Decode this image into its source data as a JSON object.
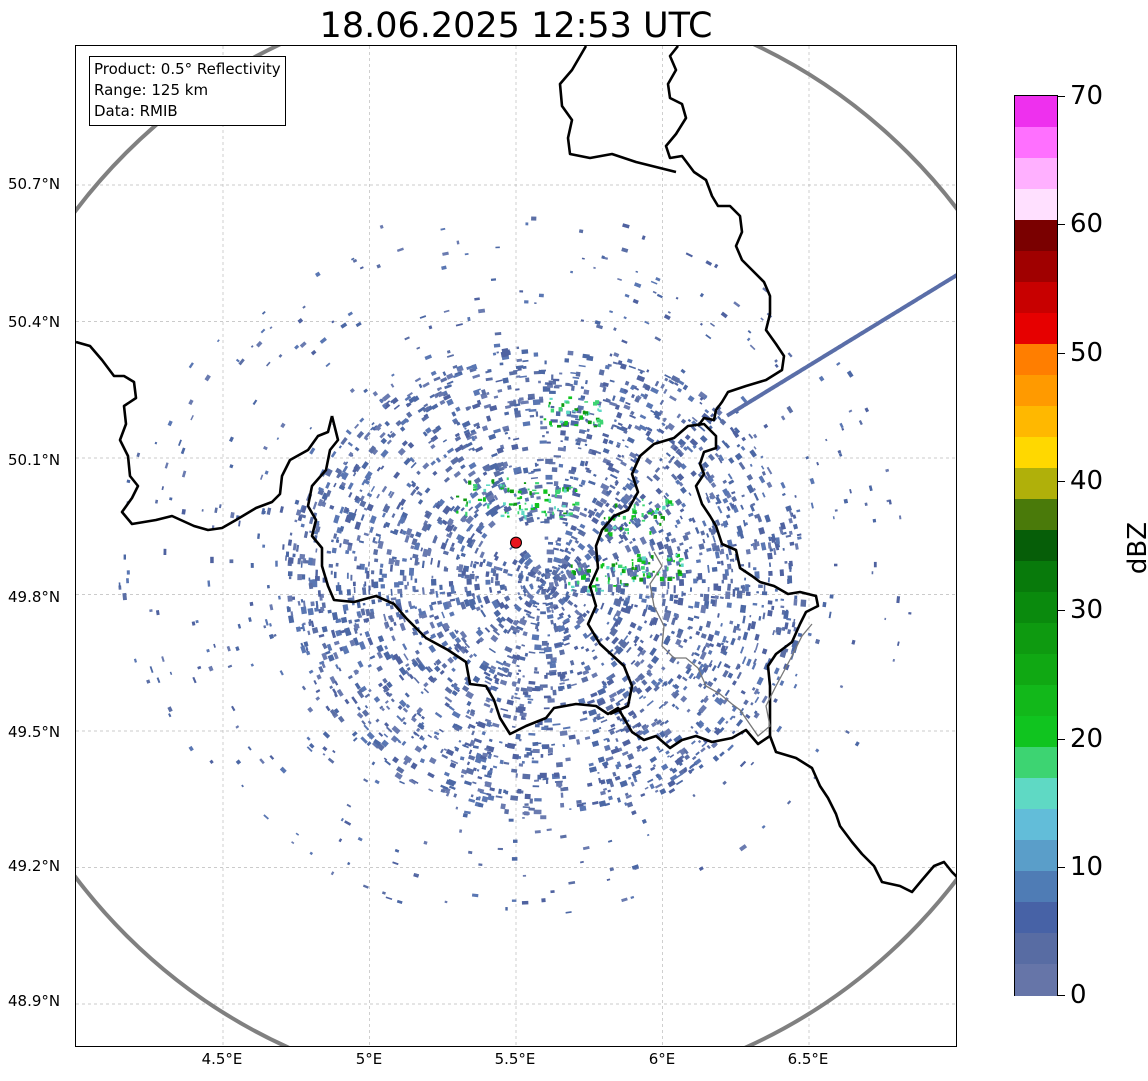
{
  "title": "18.06.2025 12:53 UTC",
  "info_box": {
    "line1": "Product: 0.5° Reflectivity",
    "line2": "Range: 125 km",
    "line3": "Data: RMIB"
  },
  "axes": {
    "lat_ticks": [
      "50.7°N",
      "50.4°N",
      "50.1°N",
      "49.8°N",
      "49.5°N",
      "49.2°N",
      "48.9°N"
    ],
    "lon_ticks": [
      "4.5°E",
      "5°E",
      "5.5°E",
      "6°E",
      "6.5°E"
    ]
  },
  "map": {
    "radar_site": {
      "lon": 5.5,
      "lat": 49.914,
      "color": "#e8141e"
    },
    "range_ring_color": "#808080",
    "border_color": "#000000",
    "gridlines": true
  },
  "colorbar": {
    "label": "dBZ",
    "min": 0,
    "max": 70,
    "tick_labels": [
      "70",
      "60",
      "50",
      "40",
      "30",
      "20",
      "10",
      "0"
    ],
    "colors": [
      "#6675a8",
      "#586ca3",
      "#4762a6",
      "#4f7cb5",
      "#5a9ec9",
      "#62bdd9",
      "#5fd9c4",
      "#3dd472",
      "#10c41f",
      "#12b81a",
      "#10a813",
      "#0e9a10",
      "#0a8a0d",
      "#087a0b",
      "#065e08",
      "#4a7a0a",
      "#b0b00a",
      "#ffd800",
      "#ffb800",
      "#ff9a00",
      "#ff7e00",
      "#e60000",
      "#c80000",
      "#a00000",
      "#7a0000",
      "#ffe0ff",
      "#ffb0ff",
      "#ff70ff",
      "#ee30ee"
    ]
  }
}
